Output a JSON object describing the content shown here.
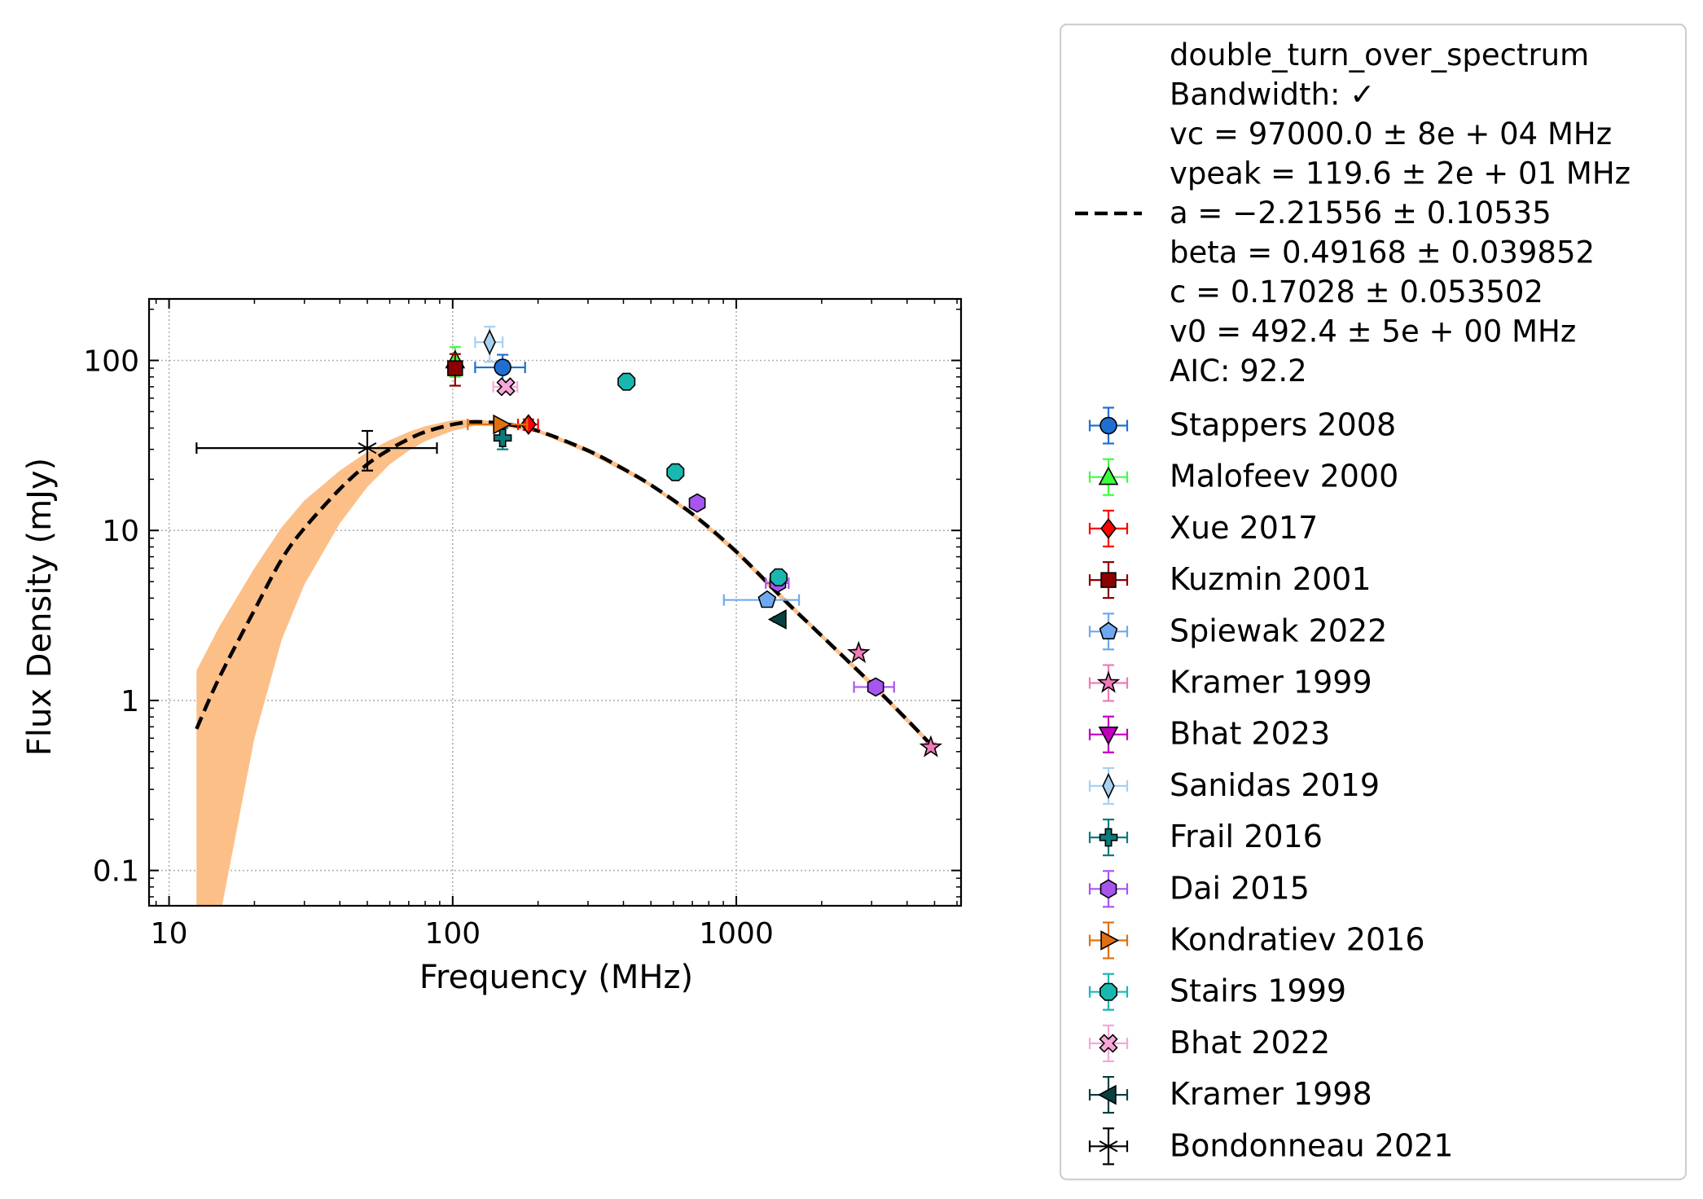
{
  "chart_data": {
    "type": "scatter",
    "xlabel": "Frequency (MHz)",
    "ylabel": "Flux Density (mJy)",
    "xscale": "log",
    "yscale": "log",
    "xlim": [
      8.5,
      6200
    ],
    "ylim": [
      0.062,
      230
    ],
    "grid": true,
    "legend_position": "outside-right",
    "x_ticks": [
      {
        "v": 10,
        "label": "10"
      },
      {
        "v": 100,
        "label": "100"
      },
      {
        "v": 1000,
        "label": "1000"
      }
    ],
    "y_ticks": [
      {
        "v": 0.1,
        "label": "0.1"
      },
      {
        "v": 1,
        "label": "1"
      },
      {
        "v": 10,
        "label": "10"
      },
      {
        "v": 100,
        "label": "100"
      }
    ],
    "fit": {
      "name": "double_turn_over_spectrum",
      "legend_lines": [
        "double_turn_over_spectrum",
        "Bandwidth: ✓",
        "vc = 97000.0 ± 8e + 04 MHz",
        "vpeak = 119.6 ± 2e + 01 MHz",
        "a = −2.21556 ± 0.10535",
        "beta = 0.49168 ± 0.039852",
        "c = 0.17028 ± 0.053502",
        "v0 = 492.4 ± 5e + 00 MHz",
        "AIC: 92.2"
      ],
      "line_color": "#000000",
      "band_color": "#fdbf88",
      "curve": [
        [
          12.5,
          0.68
        ],
        [
          15,
          1.35
        ],
        [
          20,
          3.4
        ],
        [
          25,
          6.8
        ],
        [
          30,
          10.3
        ],
        [
          40,
          17.5
        ],
        [
          50,
          24.5
        ],
        [
          60,
          30
        ],
        [
          70,
          34.5
        ],
        [
          80,
          38
        ],
        [
          100,
          42
        ],
        [
          120,
          43.5
        ],
        [
          150,
          42.5
        ],
        [
          200,
          38.5
        ],
        [
          300,
          29.5
        ],
        [
          400,
          23
        ],
        [
          500,
          18.5
        ],
        [
          700,
          12.5
        ],
        [
          1000,
          7.5
        ],
        [
          1500,
          3.8
        ],
        [
          2000,
          2.4
        ],
        [
          3000,
          1.25
        ],
        [
          4000,
          0.77
        ],
        [
          4900,
          0.54
        ]
      ],
      "band_upper": [
        [
          12.5,
          1.5
        ],
        [
          15,
          2.7
        ],
        [
          20,
          6.0
        ],
        [
          25,
          10.5
        ],
        [
          30,
          15
        ],
        [
          40,
          22.5
        ],
        [
          50,
          29
        ],
        [
          60,
          34
        ],
        [
          70,
          38
        ],
        [
          80,
          41
        ],
        [
          100,
          44.5
        ],
        [
          120,
          45
        ],
        [
          150,
          43.5
        ],
        [
          200,
          39.5
        ],
        [
          300,
          30.5
        ],
        [
          400,
          23.8
        ],
        [
          500,
          19
        ],
        [
          700,
          12.9
        ],
        [
          1000,
          7.8
        ],
        [
          1500,
          3.95
        ],
        [
          2000,
          2.48
        ],
        [
          3000,
          1.3
        ],
        [
          4000,
          0.8
        ],
        [
          4900,
          0.56
        ]
      ],
      "band_lower": [
        [
          12.5,
          0.02
        ],
        [
          15,
          0.05
        ],
        [
          20,
          0.6
        ],
        [
          25,
          2.3
        ],
        [
          30,
          4.8
        ],
        [
          40,
          11
        ],
        [
          50,
          18
        ],
        [
          60,
          24.5
        ],
        [
          70,
          29.5
        ],
        [
          80,
          33.5
        ],
        [
          100,
          38.5
        ],
        [
          120,
          41.5
        ],
        [
          150,
          41
        ],
        [
          200,
          37.5
        ],
        [
          300,
          28.5
        ],
        [
          400,
          22.2
        ],
        [
          500,
          18
        ],
        [
          700,
          12.1
        ],
        [
          1000,
          7.2
        ],
        [
          1500,
          3.65
        ],
        [
          2000,
          2.32
        ],
        [
          3000,
          1.2
        ],
        [
          4000,
          0.74
        ],
        [
          4900,
          0.52
        ]
      ]
    },
    "series": [
      {
        "name": "Stappers 2008",
        "marker": "circle",
        "color": "#1f6fd0",
        "points": [
          {
            "x": 150,
            "y": 91,
            "xerr": [
              30,
              30
            ],
            "yerr": [
              17,
              17
            ]
          }
        ]
      },
      {
        "name": "Malofeev 2000",
        "marker": "triangle-up",
        "color": "#3dff3d",
        "points": [
          {
            "x": 102,
            "y": 100,
            "xerr": [
              0,
              0
            ],
            "yerr": [
              20,
              20
            ]
          }
        ]
      },
      {
        "name": "Xue 2017",
        "marker": "diamond",
        "color": "#ff0000",
        "points": [
          {
            "x": 185,
            "y": 42,
            "xerr": [
              15,
              15
            ],
            "yerr": [
              3,
              3
            ]
          }
        ]
      },
      {
        "name": "Kuzmin 2001",
        "marker": "square",
        "color": "#8b0000",
        "points": [
          {
            "x": 102,
            "y": 90,
            "xerr": [
              0,
              0
            ],
            "yerr": [
              19,
              19
            ]
          }
        ]
      },
      {
        "name": "Spiewak 2022",
        "marker": "pentagon",
        "color": "#6fa8f0",
        "points": [
          {
            "x": 1284,
            "y": 3.9,
            "xerr": [
              380,
              380
            ],
            "yerr": [
              0.2,
              0.2
            ]
          }
        ]
      },
      {
        "name": "Kramer 1999",
        "marker": "star",
        "color": "#f07ab8",
        "points": [
          {
            "x": 2700,
            "y": 1.9,
            "xerr": [
              0,
              0
            ],
            "yerr": [
              0.1,
              0.1
            ]
          },
          {
            "x": 4850,
            "y": 0.53,
            "xerr": [
              0,
              0
            ],
            "yerr": [
              0.03,
              0.03
            ]
          }
        ]
      },
      {
        "name": "Bhat 2023",
        "marker": "triangle-down",
        "color": "#c000c0",
        "points": []
      },
      {
        "name": "Sanidas 2019",
        "marker": "thin-diamond",
        "color": "#a8d0f0",
        "points": [
          {
            "x": 135,
            "y": 128,
            "xerr": [
              15,
              15
            ],
            "yerr": [
              30,
              30
            ]
          }
        ]
      },
      {
        "name": "Frail 2016",
        "marker": "plus",
        "color": "#0e7a7a",
        "points": [
          {
            "x": 150,
            "y": 35,
            "xerr": [
              0,
              0
            ],
            "yerr": [
              5,
              5
            ]
          }
        ]
      },
      {
        "name": "Dai 2015",
        "marker": "hexagon",
        "color": "#a855f0",
        "points": [
          {
            "x": 728,
            "y": 14.5,
            "xerr": [
              0,
              0
            ],
            "yerr": [
              0.5,
              0.5
            ]
          },
          {
            "x": 1400,
            "y": 4.9,
            "xerr": [
              130,
              130
            ],
            "yerr": [
              0.3,
              0.3
            ]
          },
          {
            "x": 3100,
            "y": 1.2,
            "xerr": [
              500,
              500
            ],
            "yerr": [
              0.05,
              0.05
            ]
          }
        ]
      },
      {
        "name": "Kondratiev 2016",
        "marker": "triangle-right",
        "color": "#e07010",
        "points": [
          {
            "x": 148,
            "y": 42,
            "xerr": [
              35,
              35
            ],
            "yerr": [
              0,
              0
            ]
          }
        ]
      },
      {
        "name": "Stairs 1999",
        "marker": "octagon",
        "color": "#18b8b0",
        "points": [
          {
            "x": 410,
            "y": 75,
            "xerr": [
              0,
              0
            ],
            "yerr": [
              2,
              2
            ]
          },
          {
            "x": 610,
            "y": 22,
            "xerr": [
              0,
              0
            ],
            "yerr": [
              1,
              1
            ]
          },
          {
            "x": 1410,
            "y": 5.3,
            "xerr": [
              0,
              0
            ],
            "yerr": [
              0.2,
              0.2
            ]
          }
        ]
      },
      {
        "name": "Bhat 2022",
        "marker": "x-filled",
        "color": "#f5a8d8",
        "points": [
          {
            "x": 154,
            "y": 70,
            "xerr": [
              15,
              15
            ],
            "yerr": [
              5,
              5
            ]
          }
        ]
      },
      {
        "name": "Kramer 1998",
        "marker": "triangle-left",
        "color": "#0a4040",
        "points": [
          {
            "x": 1410,
            "y": 3.0,
            "xerr": [
              0,
              0
            ],
            "yerr": [
              0.1,
              0.1
            ]
          }
        ]
      },
      {
        "name": "Bondonneau 2021",
        "marker": "star-lines",
        "color": "#000000",
        "points": [
          {
            "x": 50,
            "y": 30.5,
            "xerr": [
              37.5,
              38
            ],
            "yerr": [
              8,
              8
            ]
          }
        ]
      }
    ]
  }
}
